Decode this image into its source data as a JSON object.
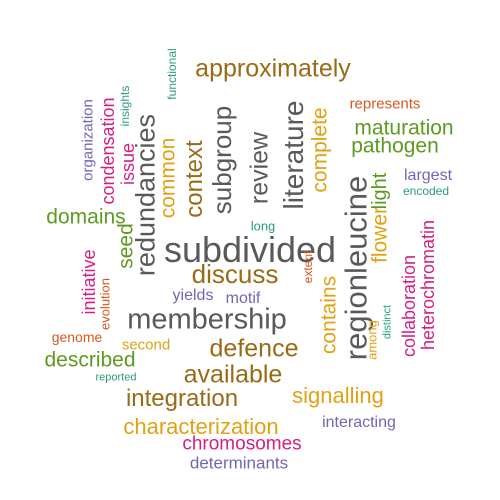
{
  "palette": {
    "gray": "#595959",
    "brown": "#9a6a16",
    "orange": "#e2a114",
    "green": "#5d9a1f",
    "magenta": "#d41f80",
    "purple": "#7266b3",
    "red_orange": "#d6581c",
    "teal": "#2b9c79"
  },
  "words": [
    {
      "text": "subdivided",
      "color": "gray",
      "rotated": false
    },
    {
      "text": "membership",
      "color": "gray",
      "rotated": false
    },
    {
      "text": "redundancies",
      "color": "gray",
      "rotated": true
    },
    {
      "text": "regionleucine",
      "color": "gray",
      "rotated": true
    },
    {
      "text": "literature",
      "color": "gray",
      "rotated": true
    },
    {
      "text": "review",
      "color": "gray",
      "rotated": true
    },
    {
      "text": "subgroup",
      "color": "gray",
      "rotated": true
    },
    {
      "text": "approximately",
      "color": "brown",
      "rotated": false
    },
    {
      "text": "discuss",
      "color": "brown",
      "rotated": false
    },
    {
      "text": "defence",
      "color": "brown",
      "rotated": false
    },
    {
      "text": "available",
      "color": "brown",
      "rotated": false
    },
    {
      "text": "integration",
      "color": "brown",
      "rotated": false
    },
    {
      "text": "context",
      "color": "brown",
      "rotated": true
    },
    {
      "text": "complete",
      "color": "orange",
      "rotated": true
    },
    {
      "text": "contains",
      "color": "orange",
      "rotated": true
    },
    {
      "text": "common",
      "color": "orange",
      "rotated": true
    },
    {
      "text": "flower",
      "color": "orange",
      "rotated": true
    },
    {
      "text": "signalling",
      "color": "orange",
      "rotated": false
    },
    {
      "text": "characterization",
      "color": "orange",
      "rotated": false
    },
    {
      "text": "among",
      "color": "orange",
      "rotated": true
    },
    {
      "text": "second",
      "color": "orange",
      "rotated": false
    },
    {
      "text": "maturation",
      "color": "green",
      "rotated": false
    },
    {
      "text": "pathogen",
      "color": "green",
      "rotated": false
    },
    {
      "text": "domains",
      "color": "green",
      "rotated": false
    },
    {
      "text": "described",
      "color": "green",
      "rotated": false
    },
    {
      "text": "seed",
      "color": "green",
      "rotated": true
    },
    {
      "text": "light",
      "color": "green",
      "rotated": true
    },
    {
      "text": "chromosomes",
      "color": "magenta",
      "rotated": false
    },
    {
      "text": "collaboration",
      "color": "magenta",
      "rotated": true
    },
    {
      "text": "initiative",
      "color": "magenta",
      "rotated": true
    },
    {
      "text": "heterochromatin",
      "color": "magenta",
      "rotated": true
    },
    {
      "text": "issue",
      "color": "magenta",
      "rotated": true
    },
    {
      "text": "condensation",
      "color": "magenta",
      "rotated": true
    },
    {
      "text": "determinants",
      "color": "purple",
      "rotated": false
    },
    {
      "text": "interacting",
      "color": "purple",
      "rotated": false
    },
    {
      "text": "largest",
      "color": "purple",
      "rotated": false
    },
    {
      "text": "yields",
      "color": "purple",
      "rotated": false
    },
    {
      "text": "motif",
      "color": "purple",
      "rotated": false
    },
    {
      "text": "organization",
      "color": "purple",
      "rotated": true
    },
    {
      "text": "represents",
      "color": "red_orange",
      "rotated": false
    },
    {
      "text": "genome",
      "color": "red_orange",
      "rotated": false
    },
    {
      "text": "extent",
      "color": "red_orange",
      "rotated": true
    },
    {
      "text": "evolution",
      "color": "red_orange",
      "rotated": true
    },
    {
      "text": "functional",
      "color": "teal",
      "rotated": true
    },
    {
      "text": "insights",
      "color": "teal",
      "rotated": true
    },
    {
      "text": "encoded",
      "color": "teal",
      "rotated": false
    },
    {
      "text": "long",
      "color": "teal",
      "rotated": false
    },
    {
      "text": "distinct",
      "color": "teal",
      "rotated": true
    },
    {
      "text": "reported",
      "color": "teal",
      "rotated": false
    }
  ]
}
